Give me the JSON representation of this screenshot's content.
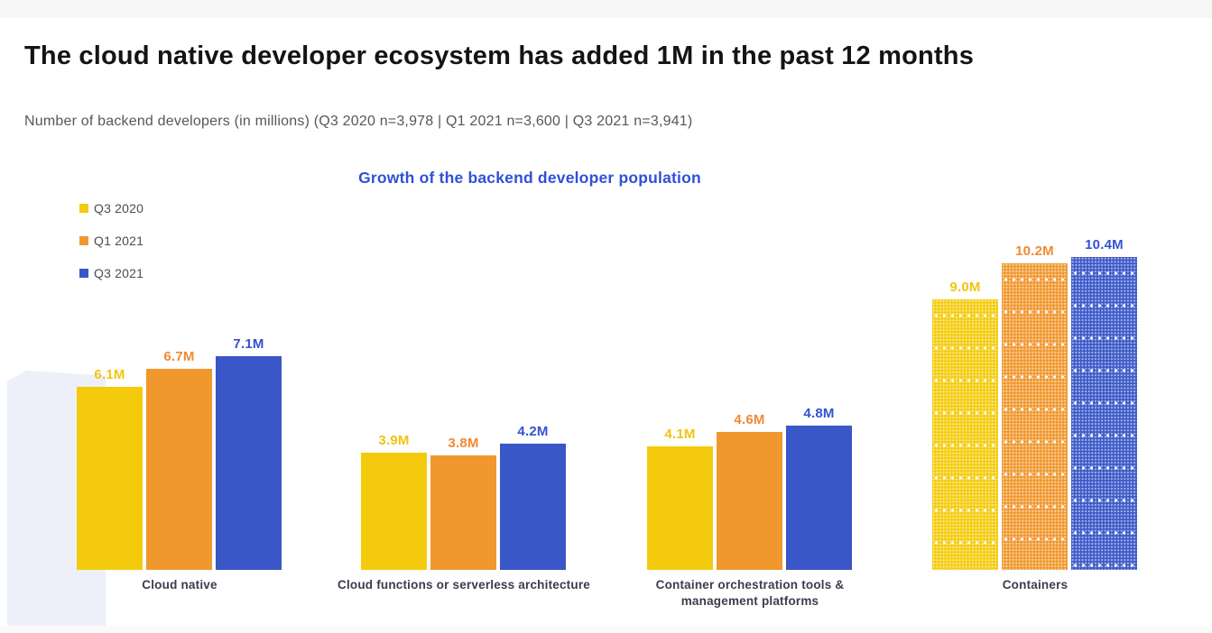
{
  "page": {
    "title": "The cloud native developer ecosystem has added 1M in the past 12 months",
    "subtitle": "Number of backend developers (in millions) (Q3 2020 n=3,978 | Q1 2021 n=3,600 | Q3 2021 n=3,941)"
  },
  "chart_data": {
    "type": "bar",
    "title": "Growth of the backend developer population",
    "unit": "M (millions of developers)",
    "categories": [
      "Cloud native",
      "Cloud functions or serverless architecture",
      "Container orchestration tools & management platforms",
      "Containers"
    ],
    "category_display_lines": [
      [
        "Cloud native"
      ],
      [
        "Cloud functions or serverless architecture"
      ],
      [
        "Container orchestration tools &",
        "management platforms"
      ],
      [
        "Containers"
      ]
    ],
    "series": [
      {
        "name": "Q3 2020",
        "color": "#F4CB0C",
        "label_color": "#F2C40E",
        "values": [
          6.1,
          3.9,
          4.1,
          9.0
        ],
        "labels": [
          "6.1M",
          "3.9M",
          "4.1M",
          "9.0M"
        ]
      },
      {
        "name": "Q1 2021",
        "color": "#F0982E",
        "label_color": "#F08A32",
        "values": [
          6.7,
          3.8,
          4.6,
          10.2
        ],
        "labels": [
          "6.7M",
          "3.8M",
          "4.6M",
          "10.2M"
        ]
      },
      {
        "name": "Q3 2021",
        "color": "#3A57C8",
        "label_color": "#3252D2",
        "values": [
          7.1,
          4.2,
          4.8,
          10.4
        ],
        "labels": [
          "7.1M",
          "4.2M",
          "4.8M",
          "10.4M"
        ]
      }
    ],
    "patterned_category": "Containers",
    "ylim": [
      0,
      11
    ],
    "grid": false,
    "axes_shown": false,
    "data_labels": true,
    "legend_position": "top-left"
  },
  "colors": {
    "chart_title_blue": "#3050D8",
    "title_text": "#141414",
    "subtitle_text": "#57575B",
    "legend_text": "#4C4C55",
    "category_text": "#3C3C4D",
    "watermark_lavender": "#EDF0F9",
    "page_margin_strip": "#F6F6F7"
  }
}
